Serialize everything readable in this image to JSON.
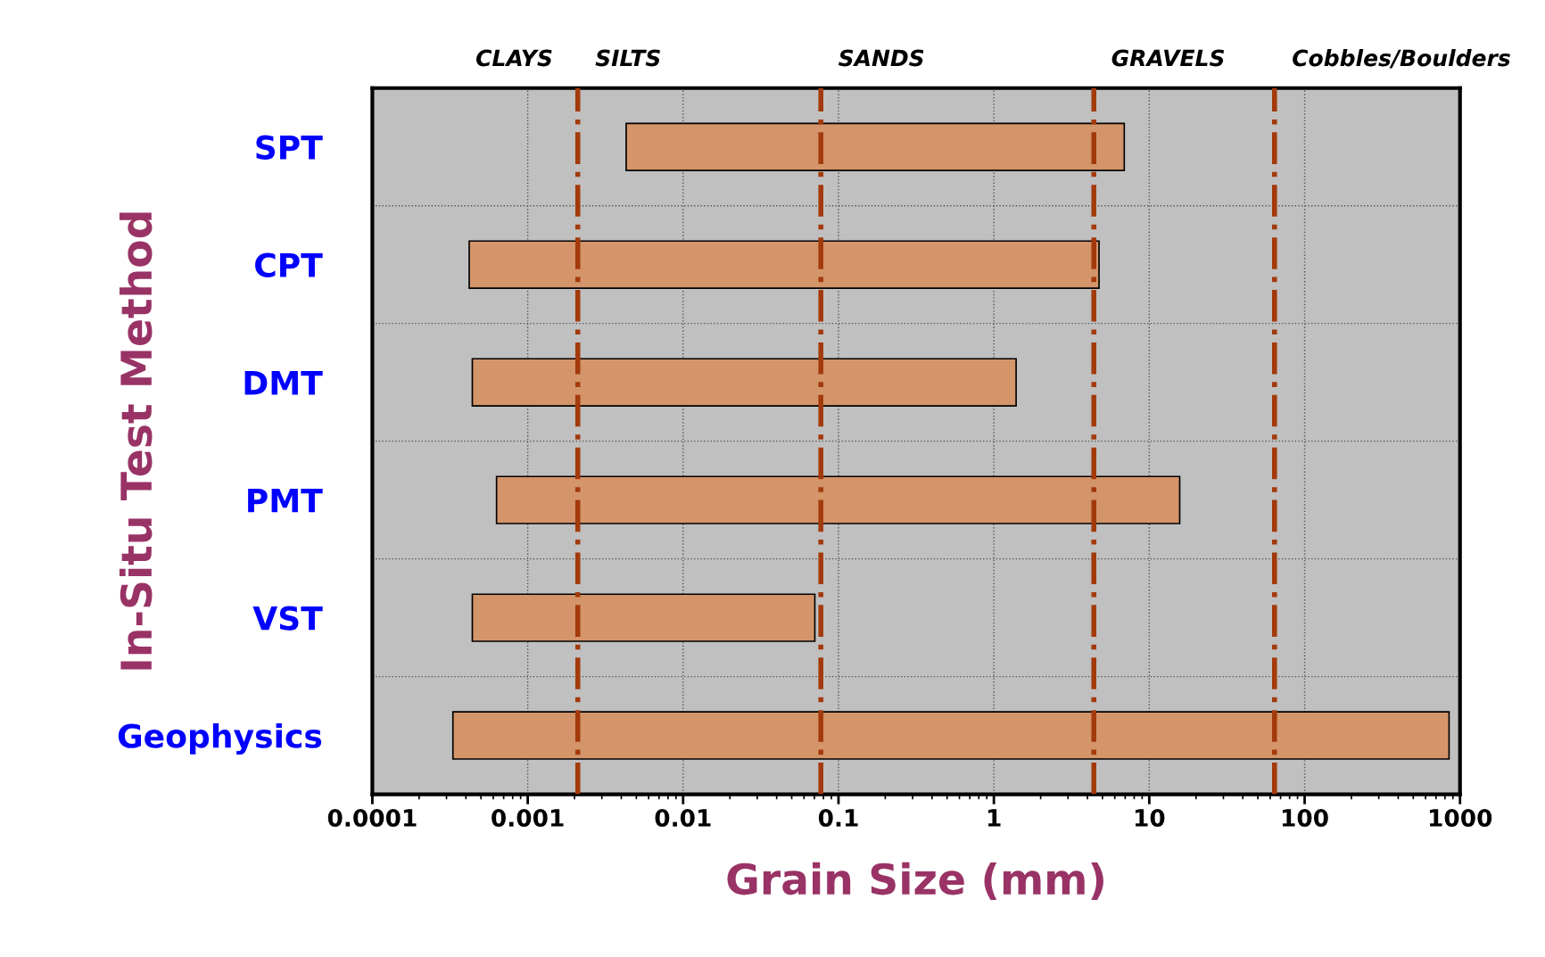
{
  "chart_data": {
    "type": "bar",
    "orientation": "horizontal",
    "log": "x",
    "xlabel": "Grain Size (mm)",
    "ylabel": "In-Situ Test Method",
    "categories": [
      "SPT",
      "CPT",
      "DMT",
      "PMT",
      "VST",
      "Geophysics"
    ],
    "base": [
      0.0043,
      0.00042,
      0.00044,
      0.00063,
      0.00044,
      0.00033
    ],
    "values": [
      6.9,
      4.75,
      1.39,
      15.7,
      0.07,
      850
    ],
    "color": "#d4956a",
    "xlim": [
      0.0001,
      1000
    ],
    "xticks": [
      0.0001,
      0.001,
      0.01,
      0.1,
      1,
      10,
      100,
      1000
    ],
    "grid": true,
    "ref_lines": [
      {
        "axis": "x",
        "value": 0.0021,
        "color": "#a33a0c",
        "line_style": "dashdot"
      },
      {
        "axis": "x",
        "value": 0.077,
        "color": "#a33a0c",
        "line_style": "dashdot"
      },
      {
        "axis": "x",
        "value": 4.4,
        "color": "#a33a0c",
        "line_style": "dashdot"
      },
      {
        "axis": "x",
        "value": 64,
        "color": "#a33a0c",
        "line_style": "dashdot"
      }
    ],
    "annotations": [
      "CLAYS",
      "SILTS",
      "SANDS",
      "GRAVELS",
      "Cobbles/Boulders"
    ]
  }
}
